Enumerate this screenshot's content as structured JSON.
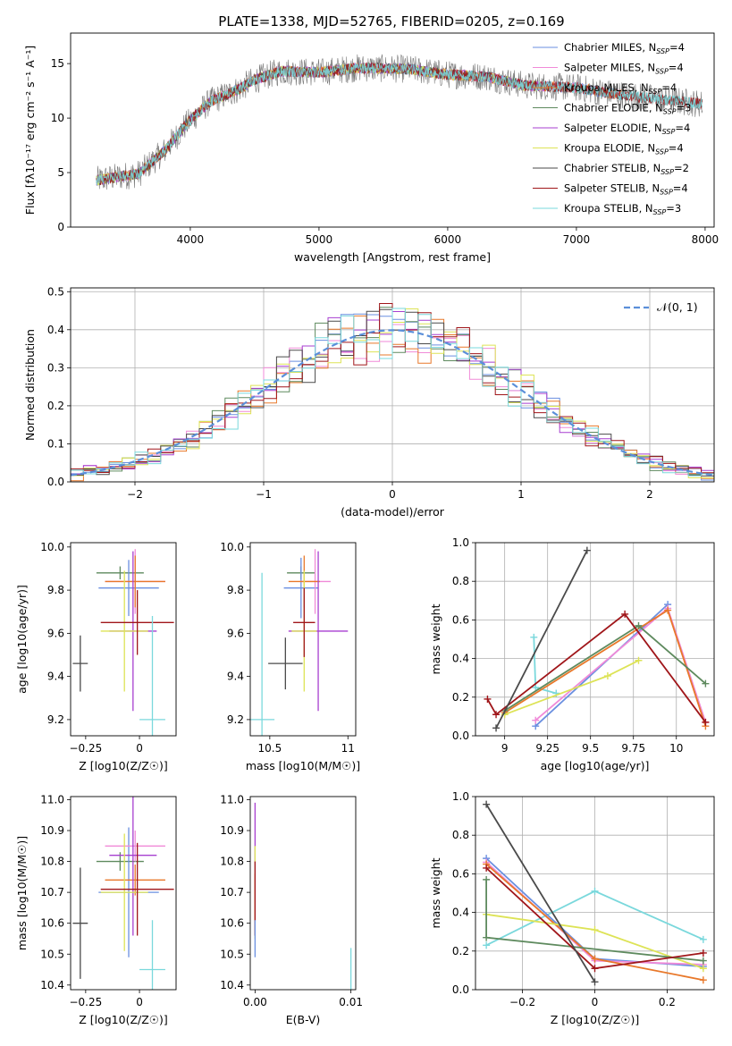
{
  "figure_title": "PLATE=1338, MJD=52765, FIBERID=0205, z=0.169",
  "colors": {
    "Chabrier MILES": "#6a8fe0",
    "Salpeter MILES": "#f08ad8",
    "Kroupa MILES": "#e8782a",
    "Chabrier ELODIE": "#5e8a5e",
    "Salpeter ELODIE": "#a73fd0",
    "Kroupa ELODIE": "#dde356",
    "Chabrier STELIB": "#4a4a4a",
    "Salpeter STELIB": "#a0161a",
    "Kroupa STELIB": "#7ad8dc",
    "gaussian": "#5b8fd9",
    "grid": "#b0b0b0"
  },
  "chart_data": [
    {
      "type": "line",
      "id": "spectrum",
      "title": "PLATE=1338, MJD=52765, FIBERID=0205, z=0.169",
      "xlabel": "wavelength [Angstrom, rest frame]",
      "ylabel": "Flux [fλ10⁻¹⁷ erg cm⁻² s⁻¹ A⁻¹]",
      "xlim": [
        3070,
        8070
      ],
      "ylim": [
        0,
        17.8
      ],
      "xticks": [
        4000,
        5000,
        6000,
        7000,
        8000
      ],
      "yticks": [
        0,
        5,
        10,
        15
      ],
      "grid": false,
      "legend_position": "right",
      "x_range": [
        3270,
        7980
      ],
      "continuum": {
        "x": [
          3270,
          3600,
          3800,
          3960,
          4150,
          4350,
          4500,
          4700,
          5000,
          5300,
          5700,
          6000,
          6300,
          6600,
          7000,
          7300,
          7600,
          7980
        ],
        "y": [
          4.3,
          4.9,
          7.0,
          9.3,
          11.5,
          12.5,
          13.5,
          14.3,
          14.2,
          14.6,
          14.5,
          14.0,
          13.8,
          13.0,
          12.8,
          12.2,
          11.8,
          11.3
        ]
      },
      "series": [
        {
          "name": "Chabrier MILES, N_SSP=4",
          "label_main": "Chabrier MILES, N",
          "label_sub": "SSP",
          "label_end": "=4",
          "x_end": 7350
        },
        {
          "name": "Salpeter MILES, N_SSP=4",
          "label_main": "Salpeter MILES, N",
          "label_sub": "SSP",
          "label_end": "=4",
          "x_end": 7350
        },
        {
          "name": "Kroupa MILES, N_SSP=4",
          "label_main": "Kroupa MILES, N",
          "label_sub": "SSP",
          "label_end": "=4",
          "x_end": 7350
        },
        {
          "name": "Chabrier ELODIE, N_SSP=3",
          "label_main": "Chabrier ELODIE, N",
          "label_sub": "SSP",
          "label_end": "=3",
          "x_end": 6800
        },
        {
          "name": "Salpeter ELODIE, N_SSP=4",
          "label_main": "Salpeter ELODIE, N",
          "label_sub": "SSP",
          "label_end": "=4",
          "x_end": 6800
        },
        {
          "name": "Kroupa ELODIE, N_SSP=4",
          "label_main": "Kroupa ELODIE, N",
          "label_sub": "SSP",
          "label_end": "=4",
          "x_end": 6800
        },
        {
          "name": "Chabrier STELIB, N_SSP=2",
          "label_main": "Chabrier STELIB, N",
          "label_sub": "SSP",
          "label_end": "=2",
          "x_end": 7980
        },
        {
          "name": "Salpeter STELIB, N_SSP=4",
          "label_main": "Salpeter STELIB, N",
          "label_sub": "SSP",
          "label_end": "=4",
          "x_end": 7980
        },
        {
          "name": "Kroupa STELIB, N_SSP=3",
          "label_main": "Kroupa STELIB, N",
          "label_sub": "SSP",
          "label_end": "=3",
          "x_end": 7980
        }
      ]
    },
    {
      "type": "bar",
      "id": "residuals",
      "xlabel": "(data-model)/error",
      "ylabel": "Normed distribution",
      "xlim": [
        -2.5,
        2.5
      ],
      "ylim": [
        0,
        0.51
      ],
      "xticks": [
        -2,
        -1,
        0,
        1,
        2
      ],
      "yticks": [
        0.0,
        0.1,
        0.2,
        0.3,
        0.4,
        0.5
      ],
      "grid": true,
      "legend_position": "upper right",
      "legend": "𝒩(0, 1)",
      "bin_width": 0.1,
      "gaussian": {
        "mean": 0,
        "sigma": 1
      }
    },
    {
      "type": "scatter",
      "id": "age_vs_Z",
      "xlabel": "Z [log10(Z/Z☉)]",
      "ylabel": "age  [log10(age/yr)]",
      "xlim": [
        -0.32,
        0.17
      ],
      "ylim": [
        9.125,
        10.02
      ],
      "xticks": [
        -0.25,
        0.0
      ],
      "yticks": [
        9.2,
        9.4,
        9.6,
        9.8,
        10.0
      ],
      "points": [
        {
          "s": "Chabrier STELIB",
          "x": -0.275,
          "y": 9.46,
          "ex": 0.035,
          "ey": 0.13
        },
        {
          "s": "Chabrier ELODIE",
          "x": -0.09,
          "y": 9.88,
          "ex": 0.11,
          "ey": 0.03
        },
        {
          "s": "Chabrier MILES",
          "x": -0.05,
          "y": 9.81,
          "ex": 0.14,
          "ey": 0.13
        },
        {
          "s": "Salpeter MILES",
          "x": -0.02,
          "y": 9.84,
          "ex": 0.14,
          "ey": 0.15
        },
        {
          "s": "Kroupa MILES",
          "x": -0.02,
          "y": 9.84,
          "ex": 0.14,
          "ey": 0.12
        },
        {
          "s": "Salpeter ELODIE",
          "x": -0.03,
          "y": 9.61,
          "ex": 0.11,
          "ey": 0.37
        },
        {
          "s": "Kroupa ELODIE",
          "x": -0.07,
          "y": 9.61,
          "ex": 0.11,
          "ey": 0.28
        },
        {
          "s": "Salpeter STELIB",
          "x": -0.01,
          "y": 9.65,
          "ex": 0.17,
          "ey": 0.15
        },
        {
          "s": "Kroupa STELIB",
          "x": 0.06,
          "y": 9.2,
          "ex": 0.06,
          "ey": 0.48
        }
      ]
    },
    {
      "type": "scatter",
      "id": "age_vs_mass",
      "xlabel": "mass [log10(M/M☉)]",
      "ylabel": "",
      "xlim": [
        10.375,
        11.05
      ],
      "ylim": [
        9.125,
        10.02
      ],
      "xticks": [
        10.5,
        11.0
      ],
      "yticks": [
        9.2,
        9.4,
        9.6,
        9.8,
        10.0
      ],
      "points": [
        {
          "s": "Chabrier STELIB",
          "x": 10.6,
          "y": 9.46,
          "ex": 0.11,
          "ey": 0.12
        },
        {
          "s": "Chabrier ELODIE",
          "x": 10.7,
          "y": 9.88,
          "ex": 0.09,
          "ey": 0.03
        },
        {
          "s": "Chabrier MILES",
          "x": 10.7,
          "y": 9.81,
          "ex": 0.11,
          "ey": 0.14
        },
        {
          "s": "Salpeter MILES",
          "x": 10.79,
          "y": 9.84,
          "ex": 0.1,
          "ey": 0.15
        },
        {
          "s": "Kroupa MILES",
          "x": 10.72,
          "y": 9.84,
          "ex": 0.1,
          "ey": 0.12
        },
        {
          "s": "Salpeter ELODIE",
          "x": 10.81,
          "y": 9.61,
          "ex": 0.19,
          "ey": 0.37
        },
        {
          "s": "Kroupa ELODIE",
          "x": 10.72,
          "y": 9.61,
          "ex": 0.08,
          "ey": 0.28
        },
        {
          "s": "Salpeter STELIB",
          "x": 10.72,
          "y": 9.65,
          "ex": 0.07,
          "ey": 0.16
        },
        {
          "s": "Kroupa STELIB",
          "x": 10.45,
          "y": 9.2,
          "ex": 0.08,
          "ey": 0.68
        }
      ]
    },
    {
      "type": "line",
      "id": "mass_weight_vs_age",
      "xlabel": "age  [log10(age/yr)]",
      "ylabel": "mass weight",
      "xlim": [
        8.83,
        10.22
      ],
      "ylim": [
        0,
        1.0
      ],
      "xticks": [
        9.0,
        9.25,
        9.5,
        9.75,
        10.0
      ],
      "yticks": [
        0.0,
        0.2,
        0.4,
        0.6,
        0.8,
        1.0
      ],
      "grid": true,
      "series": [
        {
          "s": "Kroupa STELIB",
          "x": [
            9.17,
            9.18,
            9.3
          ],
          "y": [
            0.51,
            0.25,
            0.22
          ]
        },
        {
          "s": "Chabrier MILES",
          "x": [
            9.18,
            9.95
          ],
          "y": [
            0.05,
            0.68
          ]
        },
        {
          "s": "Salpeter MILES",
          "x": [
            9.18,
            9.95,
            10.17
          ],
          "y": [
            0.08,
            0.66,
            0.07
          ]
        },
        {
          "s": "Kroupa MILES",
          "x": [
            9.0,
            9.95,
            10.17
          ],
          "y": [
            0.12,
            0.65,
            0.05
          ]
        },
        {
          "s": "Kroupa ELODIE",
          "x": [
            9.0,
            9.6,
            9.78
          ],
          "y": [
            0.11,
            0.31,
            0.39
          ]
        },
        {
          "s": "Chabrier ELODIE",
          "x": [
            9.0,
            9.78,
            10.17
          ],
          "y": [
            0.13,
            0.57,
            0.27
          ]
        },
        {
          "s": "Salpeter STELIB",
          "x": [
            8.9,
            8.95,
            9.7,
            10.17
          ],
          "y": [
            0.19,
            0.11,
            0.63,
            0.07
          ]
        },
        {
          "s": "Chabrier STELIB",
          "x": [
            8.95,
            9.48
          ],
          "y": [
            0.04,
            0.96
          ]
        }
      ]
    },
    {
      "type": "scatter",
      "id": "mass_vs_Z",
      "xlabel": "Z [log10(Z/Z☉)]",
      "ylabel": "mass [log10(M/M☉)]",
      "xlim": [
        -0.32,
        0.17
      ],
      "ylim": [
        10.385,
        11.01
      ],
      "xticks": [
        -0.25,
        0.0
      ],
      "yticks": [
        10.4,
        10.5,
        10.6,
        10.7,
        10.8,
        10.9,
        11.0
      ],
      "points": [
        {
          "s": "Chabrier STELIB",
          "x": -0.275,
          "y": 10.6,
          "ex": 0.035,
          "ey": 0.18
        },
        {
          "s": "Chabrier ELODIE",
          "x": -0.09,
          "y": 10.8,
          "ex": 0.11,
          "ey": 0.03
        },
        {
          "s": "Chabrier MILES",
          "x": -0.05,
          "y": 10.7,
          "ex": 0.14,
          "ey": 0.21
        },
        {
          "s": "Salpeter MILES",
          "x": -0.02,
          "y": 10.85,
          "ex": 0.14,
          "ey": 0.05
        },
        {
          "s": "Kroupa MILES",
          "x": -0.02,
          "y": 10.74,
          "ex": 0.14,
          "ey": 0.05
        },
        {
          "s": "Salpeter ELODIE",
          "x": -0.03,
          "y": 10.82,
          "ex": 0.11,
          "ey": 0.26
        },
        {
          "s": "Kroupa ELODIE",
          "x": -0.07,
          "y": 10.7,
          "ex": 0.11,
          "ey": 0.19
        },
        {
          "s": "Salpeter STELIB",
          "x": -0.01,
          "y": 10.71,
          "ex": 0.17,
          "ey": 0.15
        },
        {
          "s": "Kroupa STELIB",
          "x": 0.06,
          "y": 10.45,
          "ex": 0.06,
          "ey": 0.16
        }
      ]
    },
    {
      "type": "scatter",
      "id": "mass_vs_ebv",
      "xlabel": "E(B-V)",
      "ylabel": "",
      "xlim": [
        -0.0005,
        0.0105
      ],
      "ylim": [
        10.385,
        11.01
      ],
      "xticks": [
        0.0,
        0.01
      ],
      "xtick_labels": [
        "0.00",
        "0.01"
      ],
      "yticks": [
        10.4,
        10.5,
        10.6,
        10.7,
        10.8,
        10.9,
        11.0
      ],
      "points": [
        {
          "s": "Salpeter ELODIE",
          "x": 0.0,
          "y": 10.8,
          "ex": 0,
          "ey": 0.19
        },
        {
          "s": "Kroupa ELODIE",
          "x": 0.0,
          "y": 10.7,
          "ex": 0,
          "ey": 0.15
        },
        {
          "s": "Kroupa MILES",
          "x": 0.0,
          "y": 10.66,
          "ex": 0,
          "ey": 0.1
        },
        {
          "s": "Salpeter STELIB",
          "x": 0.0,
          "y": 10.68,
          "ex": 0,
          "ey": 0.12
        },
        {
          "s": "Chabrier MILES",
          "x": 0.0,
          "y": 10.55,
          "ex": 0,
          "ey": 0.06
        },
        {
          "s": "Kroupa STELIB",
          "x": 0.01,
          "y": 10.45,
          "ex": 0,
          "ey": 0.07
        }
      ]
    },
    {
      "type": "line",
      "id": "mass_weight_vs_Z",
      "xlabel": "Z [log10(Z/Z☉)]",
      "ylabel": "mass weight",
      "xlim": [
        -0.33,
        0.33
      ],
      "ylim": [
        0,
        1.0
      ],
      "xticks": [
        -0.2,
        0.0,
        0.2
      ],
      "yticks": [
        0.0,
        0.2,
        0.4,
        0.6,
        0.8,
        1.0
      ],
      "grid": true,
      "series": [
        {
          "s": "Kroupa STELIB",
          "x": [
            -0.3,
            0.0,
            0.3
          ],
          "y": [
            0.23,
            0.51,
            0.26
          ]
        },
        {
          "s": "Chabrier MILES",
          "x": [
            -0.3,
            0.0,
            0.3
          ],
          "y": [
            0.68,
            0.16,
            0.12
          ]
        },
        {
          "s": "Salpeter MILES",
          "x": [
            -0.3,
            0.0,
            0.3
          ],
          "y": [
            0.66,
            0.15,
            0.13
          ]
        },
        {
          "s": "Kroupa MILES",
          "x": [
            -0.3,
            0.0,
            0.3
          ],
          "y": [
            0.65,
            0.16,
            0.05
          ]
        },
        {
          "s": "Kroupa ELODIE",
          "x": [
            -0.3,
            0.0,
            0.3
          ],
          "y": [
            0.39,
            0.31,
            0.11
          ]
        },
        {
          "s": "Chabrier ELODIE",
          "x": [
            -0.3,
            -0.3,
            0.3
          ],
          "y": [
            0.57,
            0.27,
            0.15
          ]
        },
        {
          "s": "Salpeter STELIB",
          "x": [
            -0.3,
            0.0,
            0.3
          ],
          "y": [
            0.63,
            0.11,
            0.19
          ]
        },
        {
          "s": "Chabrier STELIB",
          "x": [
            -0.3,
            0.0
          ],
          "y": [
            0.96,
            0.04
          ]
        }
      ]
    }
  ]
}
